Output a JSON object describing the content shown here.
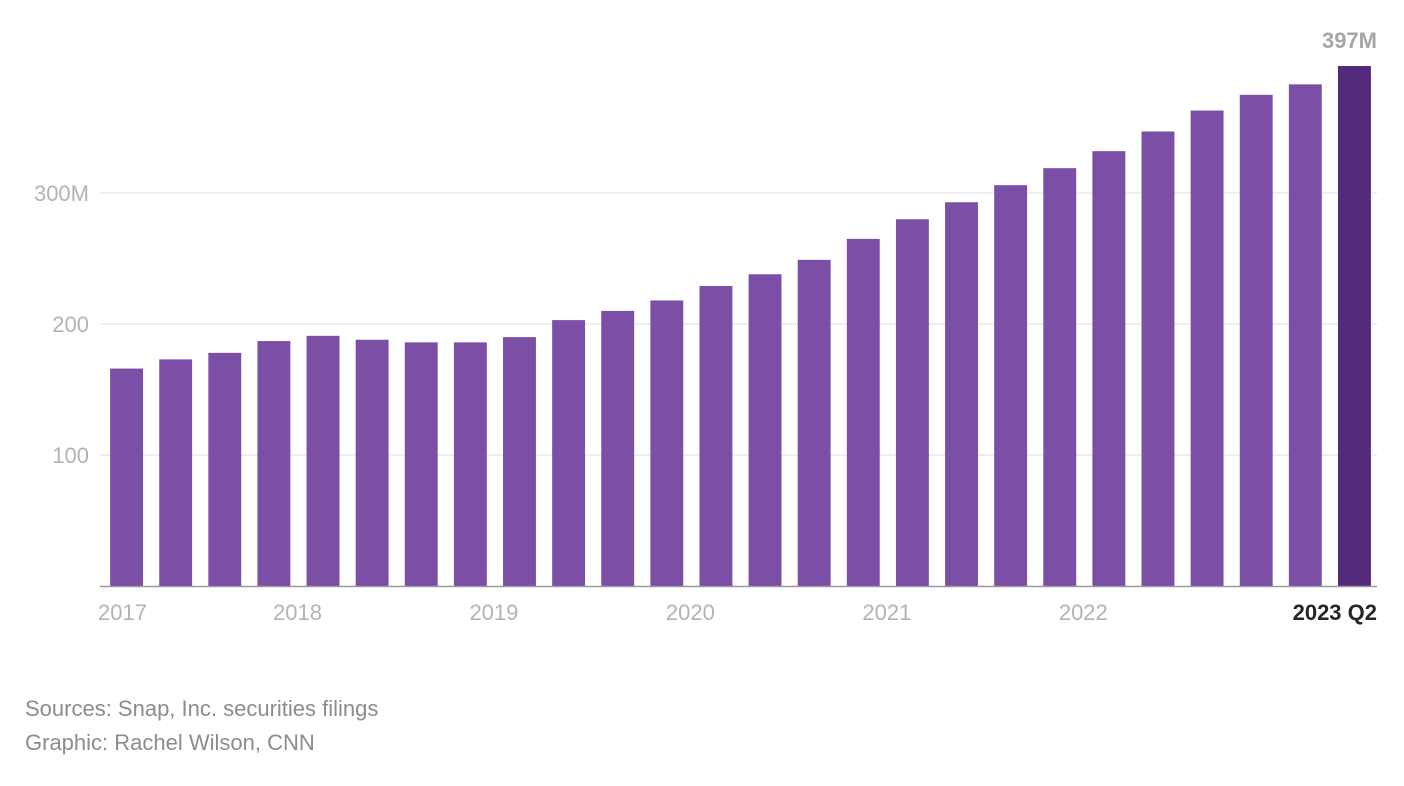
{
  "chart_data": {
    "type": "bar",
    "categories": [
      "2017 Q1",
      "2017 Q2",
      "2017 Q3",
      "2017 Q4",
      "2018 Q1",
      "2018 Q2",
      "2018 Q3",
      "2018 Q4",
      "2019 Q1",
      "2019 Q2",
      "2019 Q3",
      "2019 Q4",
      "2020 Q1",
      "2020 Q2",
      "2020 Q3",
      "2020 Q4",
      "2021 Q1",
      "2021 Q2",
      "2021 Q3",
      "2021 Q4",
      "2022 Q1",
      "2022 Q2",
      "2022 Q3",
      "2022 Q4",
      "2023 Q1",
      "2023 Q2"
    ],
    "values": [
      166,
      173,
      178,
      187,
      191,
      188,
      186,
      186,
      190,
      203,
      210,
      218,
      229,
      238,
      249,
      265,
      280,
      293,
      306,
      319,
      332,
      347,
      363,
      375,
      383,
      397
    ],
    "ylim": [
      0,
      397
    ],
    "yticks": [
      {
        "value": 100,
        "label": "100"
      },
      {
        "value": 200,
        "label": "200"
      },
      {
        "value": 300,
        "label": "300M"
      }
    ],
    "xticks": [
      {
        "index": 0,
        "label": "2017"
      },
      {
        "index": 4,
        "label": "2018"
      },
      {
        "index": 8,
        "label": "2019"
      },
      {
        "index": 12,
        "label": "2020"
      },
      {
        "index": 16,
        "label": "2021"
      },
      {
        "index": 20,
        "label": "2022"
      },
      {
        "index": 25,
        "label": "2023 Q2"
      }
    ],
    "highlight_index": 25,
    "highlight_label": "397M",
    "bar_color": "#7b4fa5",
    "highlight_color": "#532b7a",
    "grid": true
  },
  "footer": {
    "sources": "Sources: Snap, Inc. securities filings",
    "graphic": "Graphic: Rachel Wilson, CNN"
  }
}
